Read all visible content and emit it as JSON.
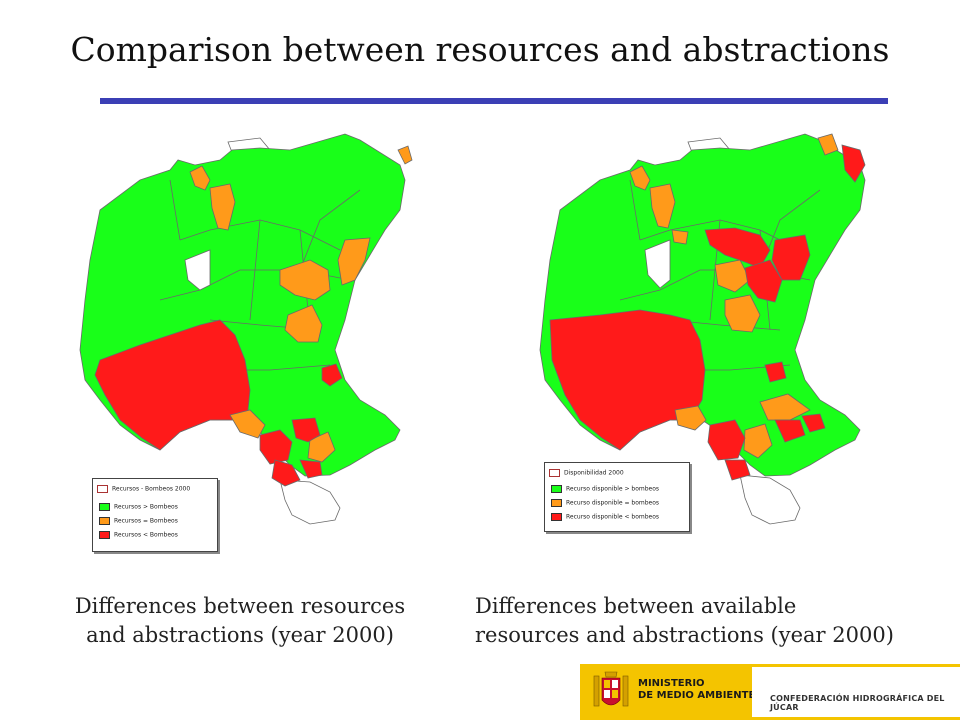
{
  "title": "Comparison between resources and abstractions",
  "colors": {
    "accent": "#3b3fb5",
    "green": "#19ff19",
    "orange": "#ff9a1a",
    "red": "#ff1a1a",
    "border": "#6a6a6a",
    "logo_yellow": "#f4c400"
  },
  "left_map": {
    "caption_line1": "Differences between resources",
    "caption_line2": "and abstractions (year 2000)",
    "legend": {
      "title": "Recursos - Bombeos 2000",
      "items": [
        {
          "label": "Recursos > Bombeos",
          "color": "#19ff19"
        },
        {
          "label": "Recursos = Bombeos",
          "color": "#ff9a1a"
        },
        {
          "label": "Recursos < Bombeos",
          "color": "#ff1a1a"
        }
      ]
    }
  },
  "right_map": {
    "caption_line1": "Differences between available",
    "caption_line2": "resources and abstractions (year 2000)",
    "legend": {
      "title": "Disponibilidad 2000",
      "items": [
        {
          "label": "Recurso disponible > bombeos",
          "color": "#19ff19"
        },
        {
          "label": "Recurso disponible = bombeos",
          "color": "#ff9a1a"
        },
        {
          "label": "Recurso disponible < bombeos",
          "color": "#ff1a1a"
        }
      ]
    }
  },
  "logo": {
    "ministry_line1": "MINISTERIO",
    "ministry_line2": "DE MEDIO AMBIENTE",
    "agency": "CONFEDERACIÓN HIDROGRÁFICA DEL JÚCAR"
  }
}
